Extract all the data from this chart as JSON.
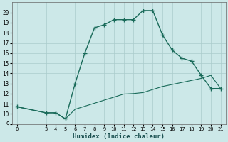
{
  "xlabel": "Humidex (Indice chaleur)",
  "line1_x": [
    0,
    3,
    4,
    5,
    6,
    7,
    8,
    9,
    10,
    11,
    12,
    13,
    14,
    15,
    16,
    17,
    18,
    19,
    20,
    21
  ],
  "line1_y": [
    10.7,
    10.1,
    10.1,
    9.5,
    13.0,
    16.0,
    18.5,
    18.8,
    19.3,
    19.3,
    19.3,
    20.2,
    20.2,
    17.8,
    16.3,
    15.5,
    15.2,
    13.8,
    12.5,
    12.5
  ],
  "line2_x": [
    0,
    3,
    4,
    5,
    6,
    7,
    8,
    9,
    10,
    11,
    12,
    13,
    14,
    15,
    16,
    17,
    18,
    19,
    20,
    21
  ],
  "line2_y": [
    10.7,
    10.1,
    10.1,
    9.5,
    10.45,
    10.75,
    11.05,
    11.35,
    11.65,
    11.95,
    12.0,
    12.1,
    12.4,
    12.7,
    12.9,
    13.1,
    13.3,
    13.5,
    13.8,
    12.5
  ],
  "line_color": "#1a6b5a",
  "bg_color": "#cce8e8",
  "grid_color": "#aacccc",
  "ylim": [
    9,
    21
  ],
  "xlim": [
    -0.5,
    21.5
  ],
  "yticks": [
    9,
    10,
    11,
    12,
    13,
    14,
    15,
    16,
    17,
    18,
    19,
    20
  ],
  "xticks": [
    0,
    3,
    4,
    5,
    6,
    7,
    8,
    9,
    10,
    11,
    12,
    13,
    14,
    15,
    16,
    17,
    18,
    19,
    20,
    21
  ]
}
